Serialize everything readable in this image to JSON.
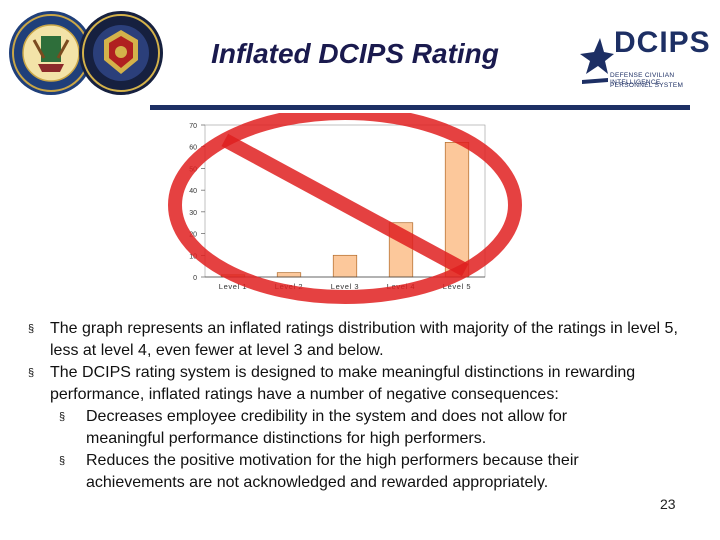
{
  "slide": {
    "title": "Inflated DCIPS Rating",
    "page_number": "23"
  },
  "logo": {
    "wordmark": "DCIPS",
    "subtitle_line1": "DEFENSE CIVILIAN INTELLIGENCE",
    "subtitle_line2": "PERSONNEL SYSTEM"
  },
  "colors": {
    "title": "#1a1a4e",
    "brand_navy": "#1d2f64",
    "bar_fill": "#fcc89b",
    "bar_stroke": "#b06a2a",
    "prohibition_red": "#e02020"
  },
  "chart_data": {
    "type": "bar",
    "categories": [
      "Level 1",
      "Level 2",
      "Level 3",
      "Level 4",
      "Level 5"
    ],
    "values": [
      1,
      2,
      10,
      25,
      62
    ],
    "title": "",
    "xlabel": "",
    "ylabel": "",
    "ylim": [
      0,
      70
    ],
    "yticks": [
      0,
      10,
      20,
      30,
      40,
      50,
      60,
      70
    ],
    "grid": false,
    "overlay": "prohibition-sign"
  },
  "bullets": [
    {
      "text": "The graph represents an inflated ratings distribution with majority of the ratings in level 5, less at level 4, even fewer at level 3 and below.",
      "sub": []
    },
    {
      "text": "The DCIPS rating system is designed to make meaningful distinctions in rewarding performance, inflated ratings have a number of negative consequences:",
      "sub": [
        "Decreases employee credibility in the system and does not allow for meaningful performance distinctions for high performers.",
        "Reduces the positive motivation for the high performers because their achievements are not acknowledged and rewarded appropriately."
      ]
    }
  ],
  "bullet_marker": "§"
}
